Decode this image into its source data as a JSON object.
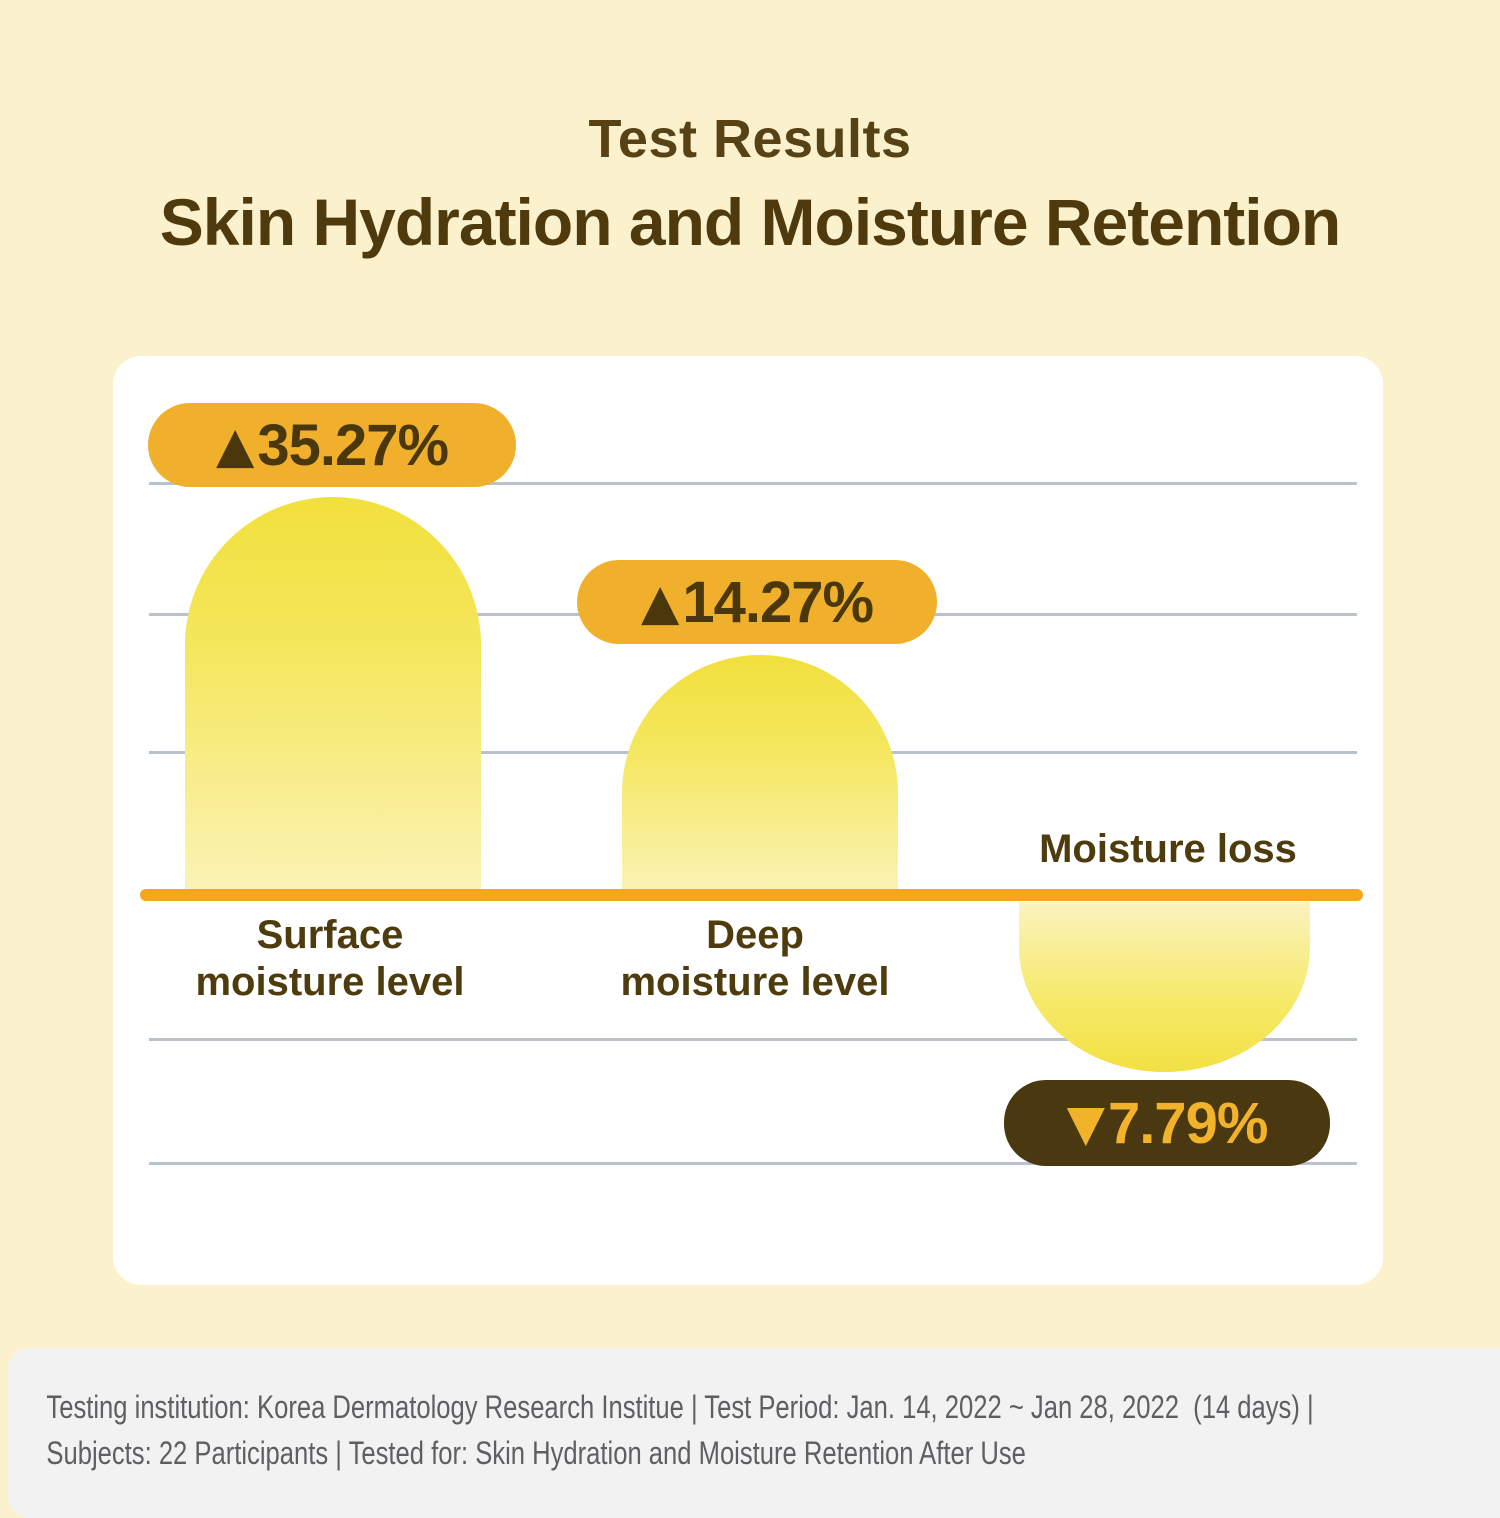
{
  "colors": {
    "background": "#FBF2CD",
    "card": "#FFFFFF",
    "accent_amber": "#F1B02B",
    "dark_brown": "#4A380C",
    "baseline_orange": "#F4A71E",
    "gridline_gray": "#B9C1CB",
    "bar_yellow_top": "#F1E03C",
    "bar_yellow_bottom": "#FBF3B8",
    "footer_bg": "#F2F2F3",
    "footer_text": "#5E5F62"
  },
  "header": {
    "kicker": "Test Results",
    "title": "Skin Hydration and Moisture Retention"
  },
  "chart": {
    "badges": [
      {
        "arrow": "▲",
        "value": "35.27%"
      },
      {
        "arrow": "▲",
        "value": "14.27%"
      },
      {
        "arrow": "▼",
        "value": "7.79%"
      }
    ],
    "categories": [
      {
        "line1": "Surface",
        "line2": "moisture level"
      },
      {
        "line1": "Deep",
        "line2": "moisture level"
      }
    ],
    "loss_label": "Moisture loss"
  },
  "chart_data": {
    "type": "bar",
    "title": "Test Results — Skin Hydration and Moisture Retention",
    "categories": [
      "Surface moisture level",
      "Deep moisture level",
      "Moisture loss"
    ],
    "values": [
      35.27,
      14.27,
      -7.79
    ],
    "value_labels": [
      "▲35.27%",
      "▲14.27%",
      "▼7.79%"
    ],
    "unit": "%",
    "baseline": 0,
    "grid": true,
    "legend_position": "none",
    "orientation": "vertical",
    "bar_style": "rounded-gradient-yellow",
    "negative_bar_note": "Moisture loss bar hangs below the orange baseline"
  },
  "footer": {
    "line1": "Testing institution: Korea Dermatology Research Institue | Test Period: Jan. 14, 2022 ~ Jan 28, 2022  (14 days) |",
    "line2": "Subjects: 22 Participants | Tested for: Skin Hydration and Moisture Retention After Use"
  }
}
